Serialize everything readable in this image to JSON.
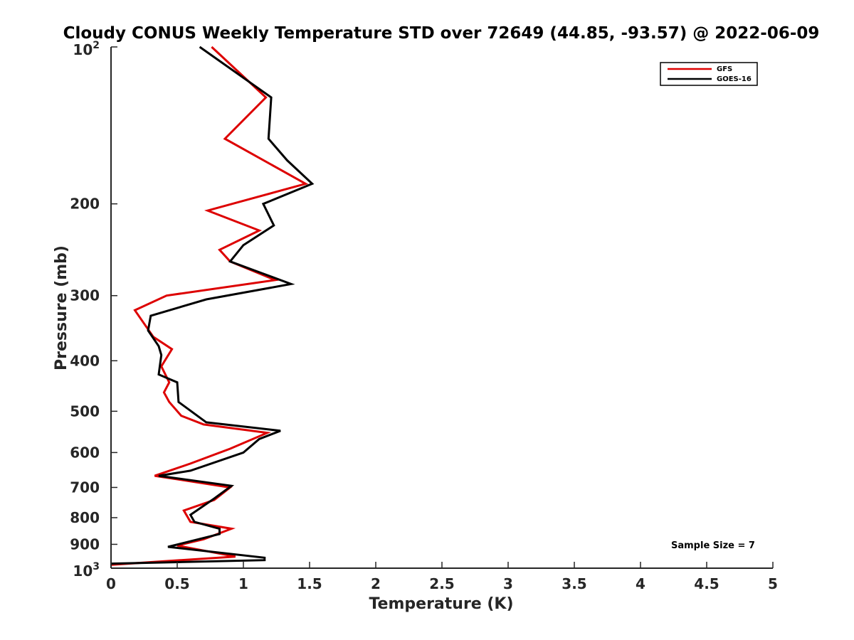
{
  "chart_data": {
    "type": "line",
    "title": "Cloudy CONUS Weekly Temperature STD over 72649 (44.85, -93.57) @ 2022-06-09",
    "xlabel": "Temperature (K)",
    "ylabel": "Pressure (mb)",
    "xlim": [
      0,
      5
    ],
    "ylim": [
      100,
      1000
    ],
    "y_scale": "log",
    "y_direction": "reversed",
    "x_ticks": [
      0,
      0.5,
      1,
      1.5,
      2,
      2.5,
      3,
      3.5,
      4,
      4.5,
      5
    ],
    "x_tick_labels": [
      "0",
      "0.5",
      "1",
      "1.5",
      "2",
      "2.5",
      "3",
      "3.5",
      "4",
      "4.5",
      "5"
    ],
    "y_ticks": [
      200,
      300,
      400,
      500,
      600,
      700,
      800,
      900
    ],
    "y_tick_labels": [
      "200",
      "300",
      "400",
      "500",
      "600",
      "700",
      "800",
      "900"
    ],
    "y_tick_top": {
      "base": "10",
      "exp": "2",
      "value": 100
    },
    "y_tick_bottom": {
      "base": "10",
      "exp": "3",
      "value": 1000
    },
    "grid": false,
    "legend_position": "top-right",
    "annotation": "Sample Size = 7",
    "series": [
      {
        "name": "GFS",
        "color": "#dd0000",
        "points": [
          [
            0.76,
            100
          ],
          [
            1.17,
            125
          ],
          [
            0.86,
            150
          ],
          [
            1.47,
            183
          ],
          [
            0.73,
            206
          ],
          [
            1.12,
            225
          ],
          [
            0.82,
            245
          ],
          [
            0.9,
            258
          ],
          [
            1.24,
            280
          ],
          [
            0.42,
            300
          ],
          [
            0.18,
            320
          ],
          [
            0.32,
            360
          ],
          [
            0.46,
            380
          ],
          [
            0.38,
            410
          ],
          [
            0.44,
            440
          ],
          [
            0.4,
            460
          ],
          [
            0.44,
            480
          ],
          [
            0.53,
            510
          ],
          [
            0.7,
            530
          ],
          [
            1.18,
            550
          ],
          [
            0.9,
            590
          ],
          [
            0.6,
            630
          ],
          [
            0.33,
            665
          ],
          [
            0.9,
            700
          ],
          [
            0.78,
            740
          ],
          [
            0.55,
            775
          ],
          [
            0.6,
            815
          ],
          [
            0.91,
            840
          ],
          [
            0.7,
            880
          ],
          [
            0.5,
            905
          ],
          [
            0.94,
            950
          ],
          [
            0,
            985
          ]
        ]
      },
      {
        "name": "GOES-16",
        "color": "#000000",
        "points": [
          [
            0.67,
            100
          ],
          [
            1.21,
            125
          ],
          [
            1.19,
            150
          ],
          [
            1.33,
            165
          ],
          [
            1.52,
            183
          ],
          [
            1.15,
            200
          ],
          [
            1.23,
            220
          ],
          [
            1.0,
            240
          ],
          [
            0.9,
            258
          ],
          [
            1.36,
            285
          ],
          [
            0.72,
            305
          ],
          [
            0.3,
            328
          ],
          [
            0.28,
            350
          ],
          [
            0.36,
            375
          ],
          [
            0.38,
            390
          ],
          [
            0.36,
            425
          ],
          [
            0.5,
            440
          ],
          [
            0.51,
            480
          ],
          [
            0.72,
            525
          ],
          [
            1.28,
            545
          ],
          [
            1.12,
            565
          ],
          [
            1.0,
            600
          ],
          [
            0.6,
            650
          ],
          [
            0.36,
            665
          ],
          [
            0.91,
            695
          ],
          [
            0.78,
            735
          ],
          [
            0.6,
            790
          ],
          [
            0.63,
            815
          ],
          [
            0.82,
            840
          ],
          [
            0.82,
            860
          ],
          [
            0.43,
            910
          ],
          [
            1.16,
            955
          ],
          [
            1.16,
            965
          ],
          [
            0,
            980
          ]
        ]
      }
    ]
  }
}
